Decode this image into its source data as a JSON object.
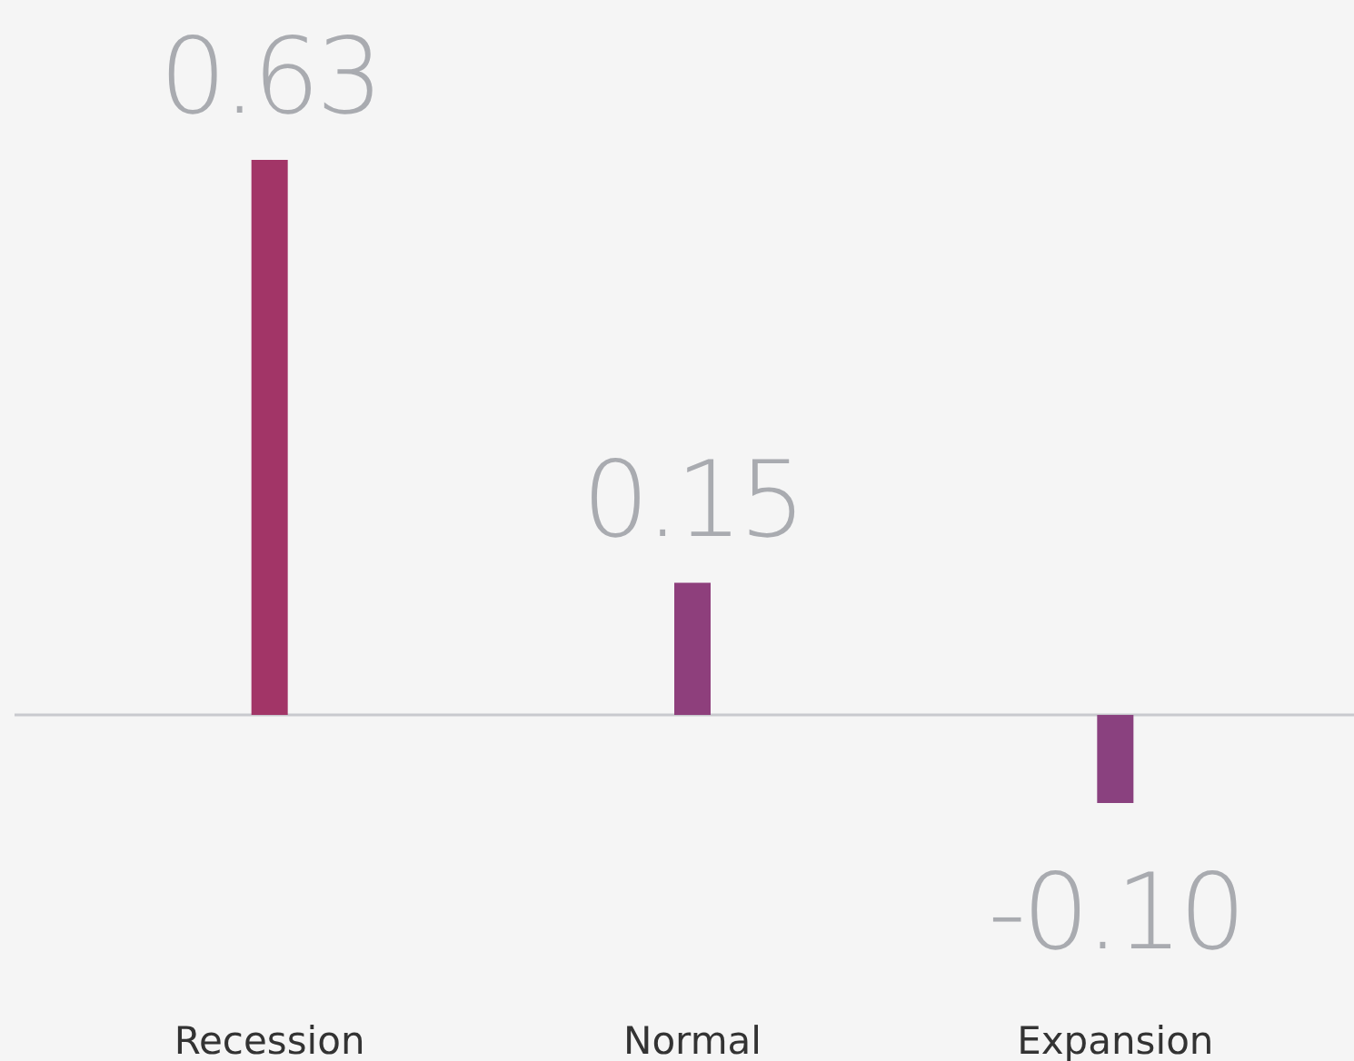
{
  "chart_data": {
    "type": "bar",
    "categories": [
      "Recession",
      "Normal",
      "Expansion"
    ],
    "values": [
      0.63,
      0.15,
      -0.1
    ],
    "colors": [
      "#a23567",
      "#8e3f7c",
      "#8a417f"
    ],
    "value_labels": [
      "0.63",
      "0.15",
      "-0.10"
    ]
  }
}
